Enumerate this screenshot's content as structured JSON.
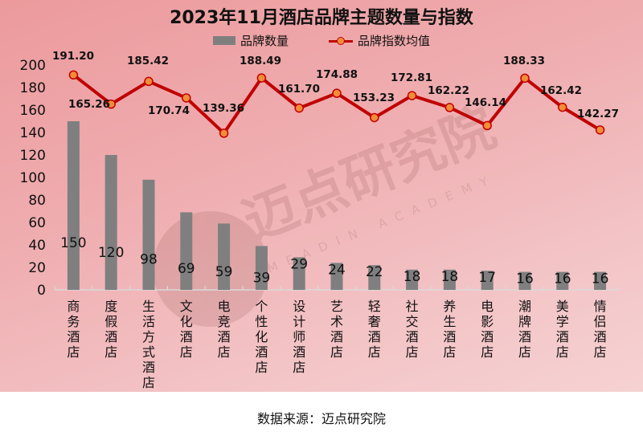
{
  "title": "2023年11月酒店品牌主题数量与指数",
  "legend": {
    "bar_label": "品牌数量",
    "line_label": "品牌指数均值"
  },
  "watermark": {
    "text": "迈点研究院",
    "subtext": "MEADIN ACADEMY"
  },
  "source_note": "数据来源：迈点研究院",
  "colors": {
    "bar": "#7f7f7f",
    "line": "#c00000",
    "marker_fill": "#f28c38",
    "background_start": "#ec9a9c",
    "background_end": "#f6d2d3"
  },
  "chart_data": {
    "type": "bar+line",
    "title": "2023年11月酒店品牌主题数量与指数",
    "xlabel": "",
    "ylabel": "",
    "ylim": [
      0,
      200
    ],
    "yticks": [
      0,
      20,
      40,
      60,
      80,
      100,
      120,
      140,
      160,
      180,
      200
    ],
    "grid": false,
    "legend_position": "top",
    "categories": [
      "商务酒店",
      "度假酒店",
      "生活方式酒店",
      "文化酒店",
      "电竞酒店",
      "个性化酒店",
      "设计师酒店",
      "艺术酒店",
      "轻奢酒店",
      "社交酒店",
      "养生酒店",
      "电影酒店",
      "潮牌酒店",
      "美学酒店",
      "情侣酒店"
    ],
    "series": [
      {
        "name": "品牌数量",
        "type": "bar",
        "values": [
          150,
          120,
          98,
          69,
          59,
          39,
          29,
          24,
          22,
          18,
          18,
          17,
          16,
          16,
          16
        ]
      },
      {
        "name": "品牌指数均值",
        "type": "line",
        "values": [
          191.2,
          165.26,
          185.42,
          170.74,
          139.36,
          188.49,
          161.7,
          174.88,
          153.23,
          172.81,
          162.22,
          146.14,
          188.33,
          162.42,
          142.27
        ]
      }
    ],
    "bar_labels": [
      "150",
      "120",
      "98",
      "69",
      "59",
      "39",
      "29",
      "24",
      "22",
      "18",
      "18",
      "17",
      "16",
      "16",
      "16"
    ],
    "line_labels": [
      "191.20",
      "165.26",
      "185.42",
      "170.74",
      "139.36",
      "188.49",
      "161.70",
      "174.88",
      "153.23",
      "172.81",
      "162.22",
      "146.14",
      "188.33",
      "162.42",
      "142.27"
    ]
  }
}
